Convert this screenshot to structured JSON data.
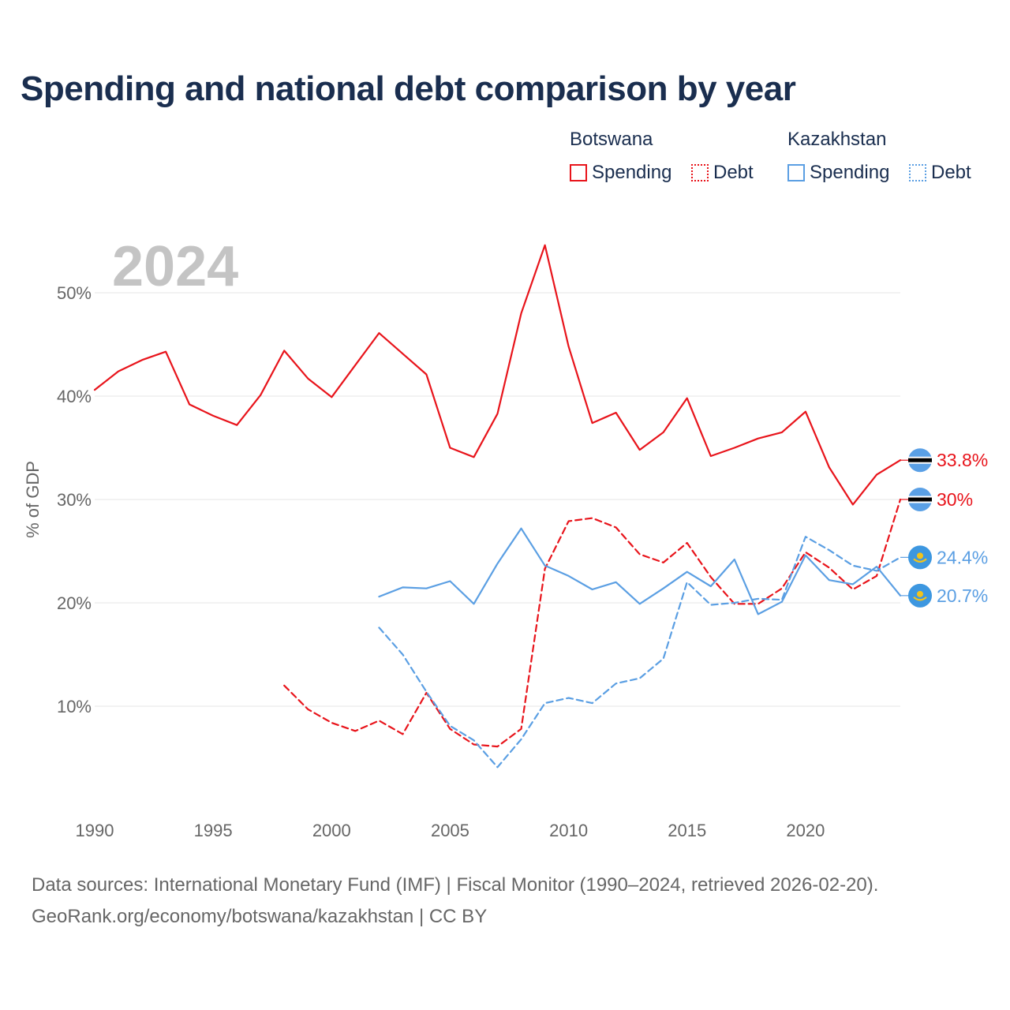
{
  "chart_data": {
    "type": "line",
    "title": "Spending and national debt comparison by year",
    "ylabel": "% of GDP",
    "xlabel": "",
    "year_label": "2024",
    "xlim": [
      1990,
      2024
    ],
    "ylim": [
      0,
      57
    ],
    "y_ticks": [
      10,
      20,
      30,
      40,
      50
    ],
    "y_tick_labels": [
      "10%",
      "20%",
      "30%",
      "40%",
      "50%"
    ],
    "x_ticks": [
      1990,
      1995,
      2000,
      2005,
      2010,
      2015,
      2020
    ],
    "x_tick_labels": [
      "1990",
      "1995",
      "2000",
      "2005",
      "2010",
      "2015",
      "2020"
    ],
    "legend": {
      "groups": [
        {
          "country": "Botswana",
          "items": [
            "Spending",
            "Debt"
          ]
        },
        {
          "country": "Kazakhstan",
          "items": [
            "Spending",
            "Debt"
          ]
        }
      ]
    },
    "series": [
      {
        "name": "Botswana Spending",
        "country": "Botswana",
        "measure": "Spending",
        "color": "#e8141b",
        "style": "solid",
        "x": [
          1990,
          1991,
          1992,
          1993,
          1994,
          1995,
          1996,
          1997,
          1998,
          1999,
          2000,
          2001,
          2002,
          2003,
          2004,
          2005,
          2006,
          2007,
          2008,
          2009,
          2010,
          2011,
          2012,
          2013,
          2014,
          2015,
          2016,
          2017,
          2018,
          2019,
          2020,
          2021,
          2022,
          2023,
          2024
        ],
        "values": [
          40.6,
          42.4,
          43.5,
          44.3,
          39.2,
          38.1,
          37.2,
          40.1,
          44.4,
          41.7,
          39.9,
          43.0,
          46.1,
          44.1,
          42.1,
          35.0,
          34.1,
          38.3,
          48.0,
          54.6,
          44.8,
          37.4,
          38.4,
          34.8,
          36.5,
          39.8,
          34.2,
          35.0,
          35.9,
          36.5,
          38.5,
          33.1,
          29.5,
          32.4,
          33.8
        ],
        "end_label": "33.8%"
      },
      {
        "name": "Botswana Debt",
        "country": "Botswana",
        "measure": "Debt",
        "color": "#e8141b",
        "style": "dashed",
        "x": [
          1998,
          1999,
          2000,
          2001,
          2002,
          2003,
          2004,
          2005,
          2006,
          2007,
          2008,
          2009,
          2010,
          2011,
          2012,
          2013,
          2014,
          2015,
          2016,
          2017,
          2018,
          2019,
          2020,
          2021,
          2022,
          2023,
          2024
        ],
        "values": [
          12.0,
          9.7,
          8.4,
          7.6,
          8.6,
          7.3,
          11.3,
          7.8,
          6.3,
          6.1,
          7.8,
          23.3,
          27.9,
          28.2,
          27.3,
          24.7,
          23.9,
          25.8,
          22.5,
          19.9,
          19.9,
          21.4,
          24.9,
          23.4,
          21.3,
          22.6,
          30.0
        ],
        "end_label": "30%"
      },
      {
        "name": "Kazakhstan Spending",
        "country": "Kazakhstan",
        "measure": "Spending",
        "color": "#5b9fe3",
        "style": "solid",
        "x": [
          2002,
          2003,
          2004,
          2005,
          2006,
          2007,
          2008,
          2009,
          2010,
          2011,
          2012,
          2013,
          2014,
          2015,
          2016,
          2017,
          2018,
          2019,
          2020,
          2021,
          2022,
          2023,
          2024
        ],
        "values": [
          20.6,
          21.5,
          21.4,
          22.1,
          19.9,
          23.8,
          27.2,
          23.6,
          22.6,
          21.3,
          22.0,
          19.9,
          21.4,
          23.0,
          21.6,
          24.2,
          18.9,
          20.1,
          24.6,
          22.2,
          21.8,
          23.5,
          20.7
        ],
        "end_label": "20.7%"
      },
      {
        "name": "Kazakhstan Debt",
        "country": "Kazakhstan",
        "measure": "Debt",
        "color": "#5b9fe3",
        "style": "dashed",
        "x": [
          2002,
          2003,
          2004,
          2005,
          2006,
          2007,
          2008,
          2009,
          2010,
          2011,
          2012,
          2013,
          2014,
          2015,
          2016,
          2017,
          2018,
          2019,
          2020,
          2021,
          2022,
          2023,
          2024
        ],
        "values": [
          17.6,
          15.0,
          11.4,
          8.1,
          6.7,
          4.1,
          6.8,
          10.3,
          10.8,
          10.3,
          12.2,
          12.7,
          14.6,
          22.0,
          19.8,
          20.0,
          20.4,
          20.3,
          26.4,
          25.1,
          23.6,
          23.1,
          24.4
        ],
        "end_label": "24.4%"
      }
    ],
    "colors": {
      "botswana": "#e8141b",
      "kazakhstan": "#5b9fe3",
      "flag_kz_sun": "#f2c31b",
      "flag_bw_blue": "#5aa0e6"
    },
    "icons": {
      "botswana": "botswana-flag-icon",
      "kazakhstan": "kazakhstan-flag-icon"
    }
  },
  "footer": {
    "line1": "Data sources: International Monetary Fund (IMF) | Fiscal Monitor (1990–2024, retrieved 2026-02-20).",
    "line2": "GeoRank.org/economy/botswana/kazakhstan | CC BY"
  }
}
